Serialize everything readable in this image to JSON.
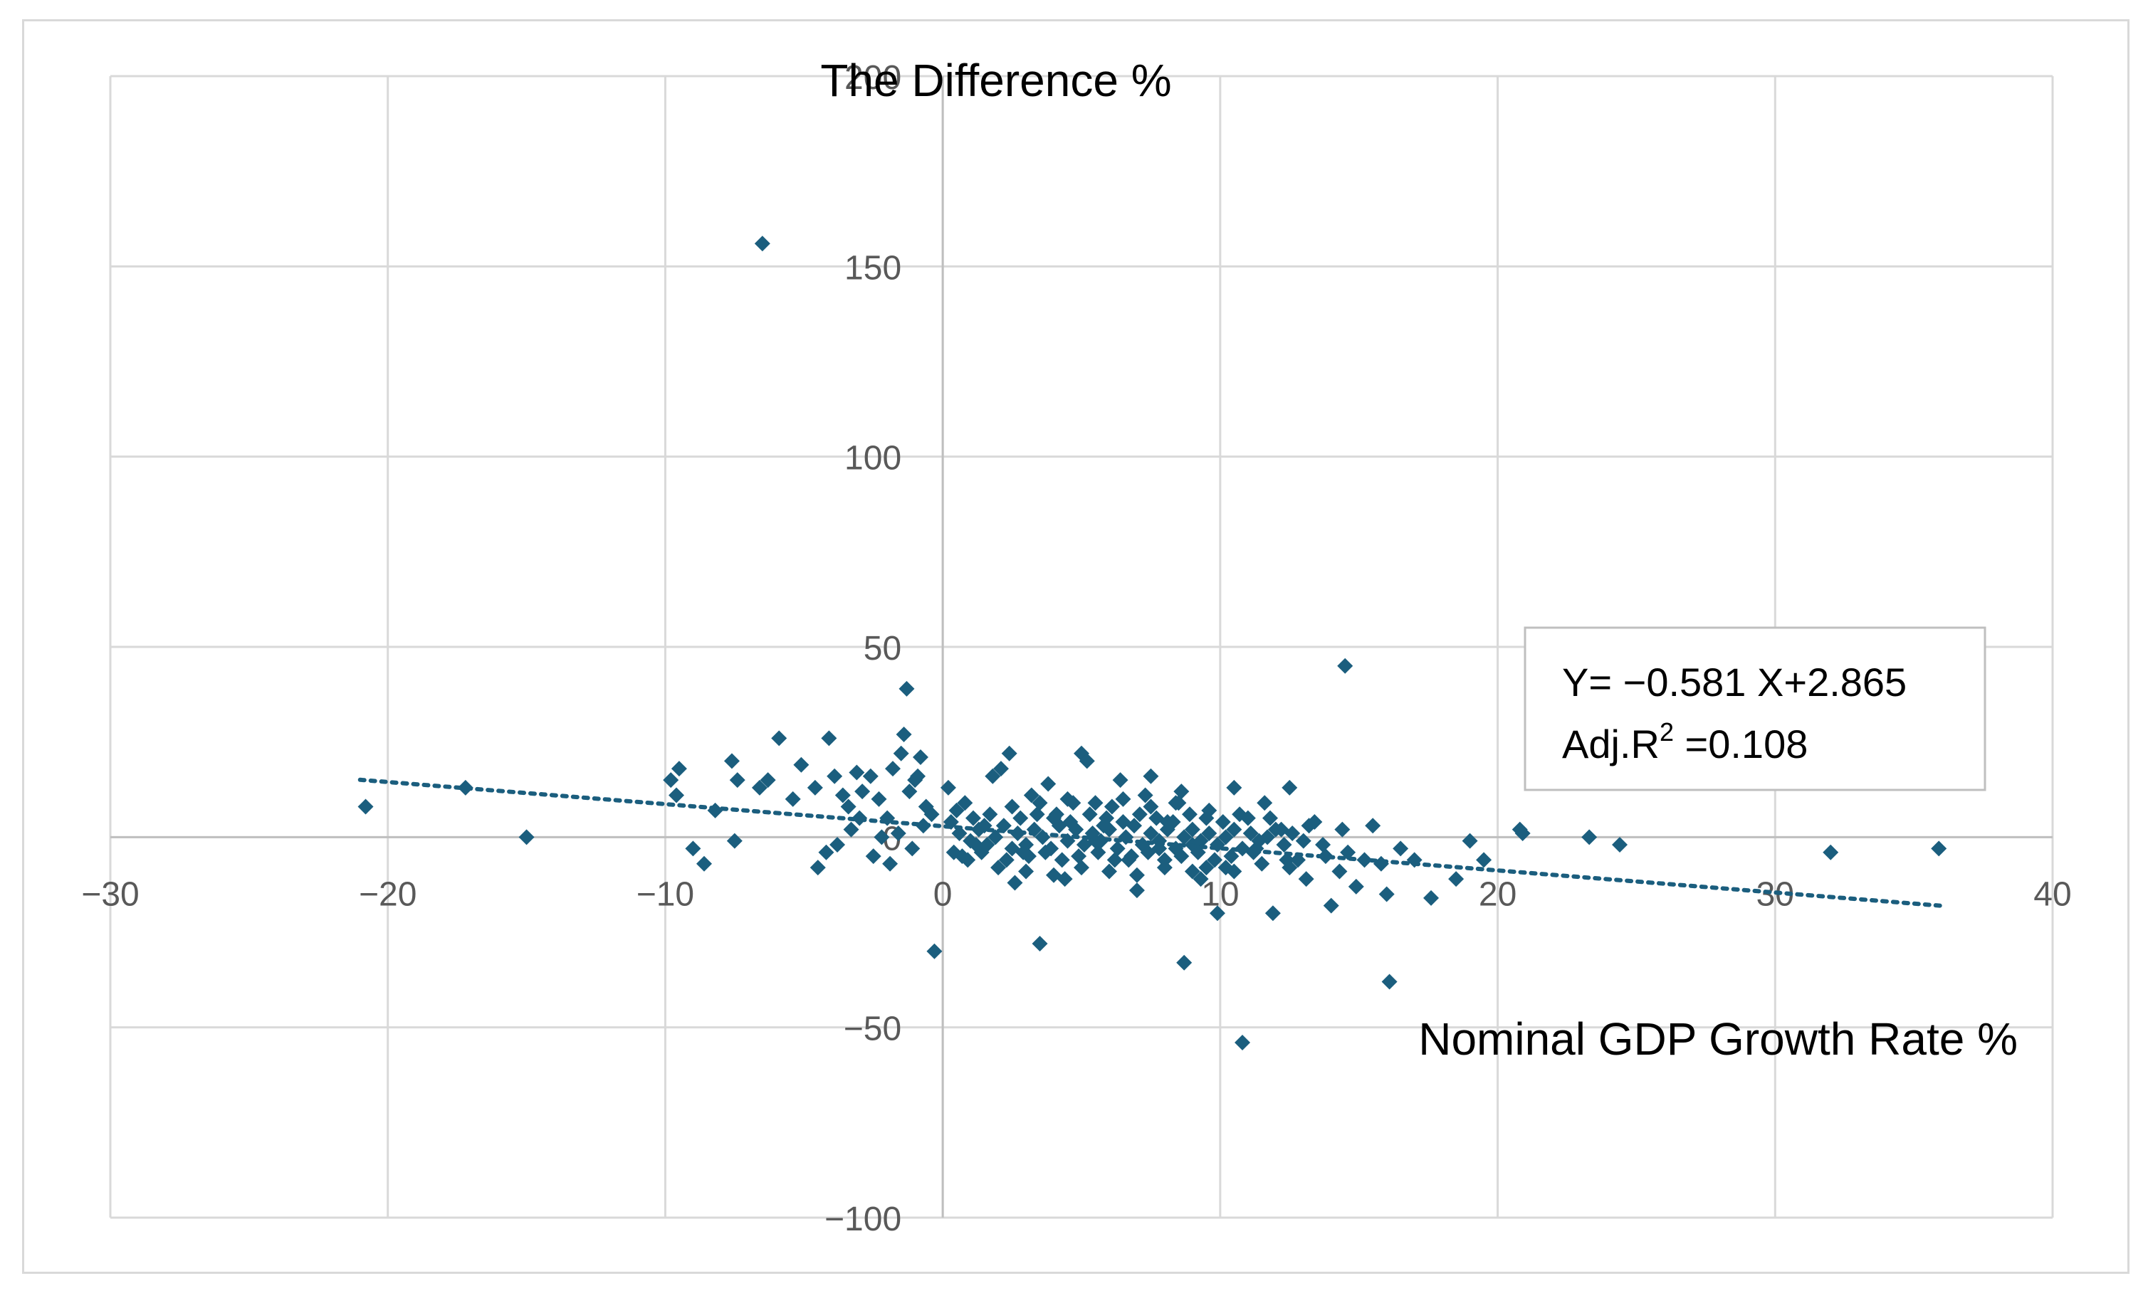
{
  "chart_data": {
    "type": "scatter",
    "title": "",
    "xlabel": "Nominal GDP Growth Rate %",
    "ylabel": "The Difference %",
    "xlim": [
      -30,
      40
    ],
    "ylim": [
      -100,
      200
    ],
    "x_ticks": [
      -30,
      -20,
      -10,
      0,
      10,
      20,
      30,
      40
    ],
    "y_ticks": [
      -100,
      -50,
      0,
      50,
      100,
      150,
      200
    ],
    "x_tick_labels": [
      "−30",
      "−20",
      "−10",
      "0",
      "10",
      "20",
      "30",
      "40"
    ],
    "y_tick_labels": [
      "−100",
      "−50",
      "0",
      "50",
      "100",
      "150",
      "200"
    ],
    "grid": true,
    "marker_color": "#1b5e7e",
    "trendline": {
      "style": "dotted",
      "slope": -0.581,
      "intercept": 2.865,
      "x_range": [
        -21,
        36
      ]
    },
    "annotation": {
      "equation": "Y= −0.581 X+2.865",
      "r2_prefix": "Adj.R",
      "r2_sup": "2",
      "r2_value": " =0.108"
    },
    "points": [
      [
        -6.5,
        156
      ],
      [
        14.5,
        45
      ],
      [
        -1.3,
        39
      ],
      [
        -20.8,
        8
      ],
      [
        -17.2,
        13
      ],
      [
        -15,
        0
      ],
      [
        -9.5,
        18
      ],
      [
        -9.8,
        15
      ],
      [
        -9.6,
        11
      ],
      [
        -9.0,
        -3
      ],
      [
        -8.6,
        -7
      ],
      [
        -8.2,
        7
      ],
      [
        -7.6,
        20
      ],
      [
        -7.4,
        15
      ],
      [
        -7.5,
        -1
      ],
      [
        -6.6,
        13
      ],
      [
        -6.3,
        15
      ],
      [
        -5.9,
        26
      ],
      [
        -5.4,
        10
      ],
      [
        -5.1,
        19
      ],
      [
        -4.6,
        13
      ],
      [
        -4.1,
        26
      ],
      [
        -3.9,
        16
      ],
      [
        -3.6,
        11
      ],
      [
        -3.4,
        8
      ],
      [
        -3.1,
        17
      ],
      [
        -2.9,
        12
      ],
      [
        -2.6,
        16
      ],
      [
        -2.3,
        10
      ],
      [
        -2.0,
        5
      ],
      [
        -1.8,
        18
      ],
      [
        -1.5,
        22
      ],
      [
        -1.2,
        12
      ],
      [
        -1.0,
        15
      ],
      [
        -0.8,
        21
      ],
      [
        -0.6,
        8
      ],
      [
        -4.5,
        -8
      ],
      [
        -4.2,
        -4
      ],
      [
        -3.8,
        -2
      ],
      [
        -3.3,
        2
      ],
      [
        -3.0,
        5
      ],
      [
        -2.5,
        -5
      ],
      [
        -2.2,
        0
      ],
      [
        -1.9,
        -7
      ],
      [
        -1.6,
        1
      ],
      [
        -1.1,
        -3
      ],
      [
        -0.7,
        3
      ],
      [
        -1.4,
        27
      ],
      [
        -0.9,
        16
      ],
      [
        -0.4,
        6
      ],
      [
        -0.3,
        -30
      ],
      [
        0.2,
        13
      ],
      [
        0.5,
        7
      ],
      [
        0.8,
        9
      ],
      [
        0.4,
        -4
      ],
      [
        0.9,
        -6
      ],
      [
        1.2,
        -2
      ],
      [
        1.5,
        3
      ],
      [
        1.8,
        16
      ],
      [
        2.1,
        18
      ],
      [
        2.4,
        22
      ],
      [
        2.0,
        -8
      ],
      [
        2.6,
        -12
      ],
      [
        2.9,
        -4
      ],
      [
        3.2,
        11
      ],
      [
        3.5,
        -28
      ],
      [
        3.8,
        14
      ],
      [
        4.1,
        6
      ],
      [
        4.4,
        -11
      ],
      [
        4.7,
        9
      ],
      [
        5.0,
        22
      ],
      [
        5.2,
        20
      ],
      [
        5.5,
        -1
      ],
      [
        5.8,
        3
      ],
      [
        6.1,
        8
      ],
      [
        6.4,
        15
      ],
      [
        6.7,
        -6
      ],
      [
        7.0,
        -14
      ],
      [
        7.3,
        11
      ],
      [
        7.5,
        16
      ],
      [
        7.8,
        -3
      ],
      [
        8.1,
        4
      ],
      [
        8.4,
        9
      ],
      [
        8.6,
        12
      ],
      [
        8.7,
        -33
      ],
      [
        9.0,
        -2
      ],
      [
        9.3,
        -11
      ],
      [
        9.6,
        7
      ],
      [
        9.9,
        -20
      ],
      [
        10.2,
        -8
      ],
      [
        10.5,
        13
      ],
      [
        10.8,
        -54
      ],
      [
        11.0,
        5
      ],
      [
        11.3,
        -3
      ],
      [
        11.6,
        9
      ],
      [
        11.9,
        -20
      ],
      [
        12.2,
        2
      ],
      [
        12.5,
        13
      ],
      [
        12.8,
        -6
      ],
      [
        13.1,
        -11
      ],
      [
        13.4,
        4
      ],
      [
        13.7,
        -2
      ],
      [
        14.0,
        -18
      ],
      [
        14.3,
        -9
      ],
      [
        14.6,
        -4
      ],
      [
        14.9,
        -13
      ],
      [
        15.2,
        -6
      ],
      [
        15.5,
        3
      ],
      [
        15.8,
        -7
      ],
      [
        16.0,
        -15
      ],
      [
        16.1,
        -38
      ],
      [
        16.5,
        -3
      ],
      [
        17.0,
        -6
      ],
      [
        17.6,
        -16
      ],
      [
        18.5,
        -11
      ],
      [
        19.0,
        -1
      ],
      [
        19.5,
        -6
      ],
      [
        20.8,
        2
      ],
      [
        20.9,
        1
      ],
      [
        23.3,
        0
      ],
      [
        24.4,
        -2
      ],
      [
        32.0,
        -4
      ],
      [
        35.9,
        -3
      ],
      [
        0.6,
        1
      ],
      [
        1.0,
        -1
      ],
      [
        1.3,
        2
      ],
      [
        1.6,
        -2
      ],
      [
        1.9,
        0
      ],
      [
        2.2,
        3
      ],
      [
        2.5,
        -3
      ],
      [
        2.7,
        1
      ],
      [
        3.0,
        -2
      ],
      [
        3.3,
        2
      ],
      [
        3.6,
        0
      ],
      [
        3.9,
        -3
      ],
      [
        4.2,
        3
      ],
      [
        4.5,
        -1
      ],
      [
        4.8,
        2
      ],
      [
        5.1,
        -2
      ],
      [
        5.4,
        1
      ],
      [
        5.7,
        -1
      ],
      [
        6.0,
        2
      ],
      [
        6.3,
        -3
      ],
      [
        6.6,
        0
      ],
      [
        6.9,
        3
      ],
      [
        7.2,
        -2
      ],
      [
        7.5,
        1
      ],
      [
        7.8,
        -1
      ],
      [
        8.1,
        2
      ],
      [
        8.4,
        -3
      ],
      [
        8.7,
        0
      ],
      [
        9.0,
        2
      ],
      [
        9.3,
        -1
      ],
      [
        9.6,
        1
      ],
      [
        9.9,
        -2
      ],
      [
        10.2,
        0
      ],
      [
        10.5,
        2
      ],
      [
        10.8,
        -3
      ],
      [
        11.1,
        1
      ],
      [
        11.4,
        -1
      ],
      [
        11.7,
        0
      ],
      [
        12.0,
        2
      ],
      [
        12.3,
        -2
      ],
      [
        12.6,
        1
      ],
      [
        13.0,
        -1
      ],
      [
        0.3,
        4
      ],
      [
        0.7,
        -5
      ],
      [
        1.1,
        5
      ],
      [
        1.4,
        -4
      ],
      [
        1.7,
        6
      ],
      [
        2.3,
        -6
      ],
      [
        2.8,
        5
      ],
      [
        3.1,
        -5
      ],
      [
        3.4,
        6
      ],
      [
        3.7,
        -4
      ],
      [
        4.0,
        5
      ],
      [
        4.3,
        -6
      ],
      [
        4.6,
        4
      ],
      [
        4.9,
        -5
      ],
      [
        5.3,
        6
      ],
      [
        5.6,
        -4
      ],
      [
        5.9,
        5
      ],
      [
        6.2,
        -6
      ],
      [
        6.5,
        4
      ],
      [
        6.8,
        -5
      ],
      [
        7.1,
        6
      ],
      [
        7.4,
        -4
      ],
      [
        7.7,
        5
      ],
      [
        8.0,
        -6
      ],
      [
        8.3,
        4
      ],
      [
        8.6,
        -5
      ],
      [
        8.9,
        6
      ],
      [
        9.2,
        -4
      ],
      [
        9.5,
        5
      ],
      [
        9.8,
        -6
      ],
      [
        10.1,
        4
      ],
      [
        10.4,
        -5
      ],
      [
        10.7,
        6
      ],
      [
        11.2,
        -4
      ],
      [
        11.8,
        5
      ],
      [
        12.4,
        -6
      ],
      [
        13.2,
        3
      ],
      [
        13.8,
        -5
      ],
      [
        14.4,
        2
      ],
      [
        3.5,
        9
      ],
      [
        4.5,
        10
      ],
      [
        5.5,
        9
      ],
      [
        6.5,
        10
      ],
      [
        7.5,
        8
      ],
      [
        3.0,
        -9
      ],
      [
        4.0,
        -10
      ],
      [
        5.0,
        -8
      ],
      [
        6.0,
        -9
      ],
      [
        7.0,
        -10
      ],
      [
        8.0,
        -8
      ],
      [
        9.0,
        -9
      ],
      [
        2.5,
        8
      ],
      [
        8.5,
        9
      ],
      [
        9.5,
        -8
      ],
      [
        10.5,
        -9
      ],
      [
        11.5,
        -7
      ],
      [
        12.5,
        -8
      ]
    ]
  }
}
